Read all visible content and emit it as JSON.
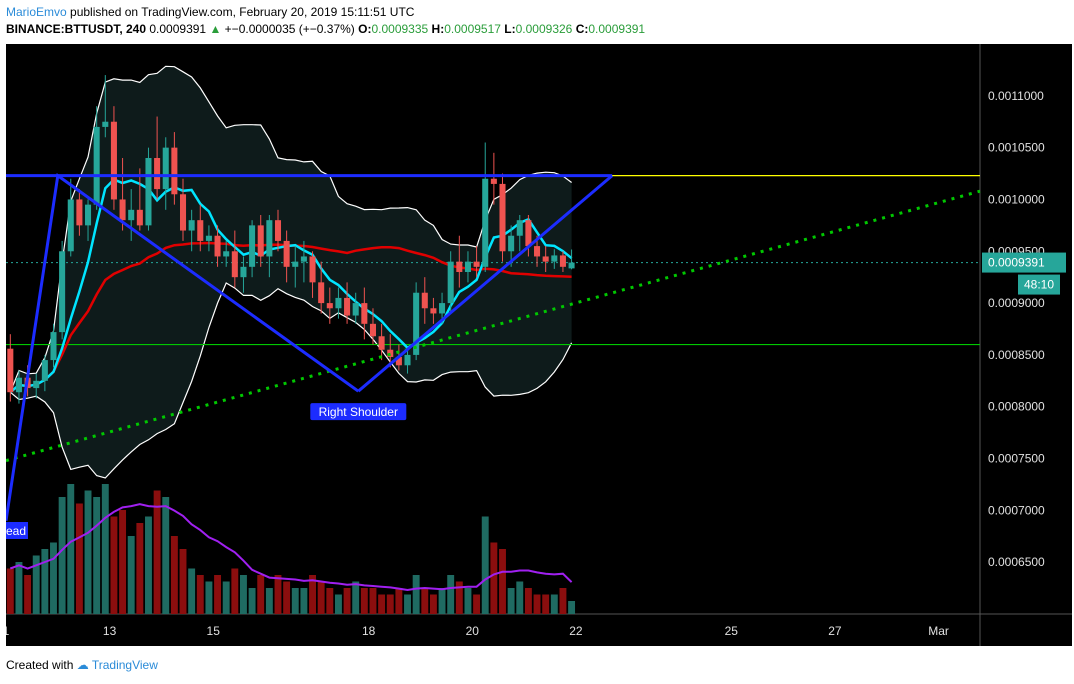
{
  "header": {
    "author": "MarioEmvo",
    "published": "published on TradingView.com, February 20, 2019 15:11:51 UTC"
  },
  "symbol_line": {
    "symbol": "BINANCE:BTTUSDT, 240",
    "last": "0.0009391",
    "change": "+−0.0000035 (+−0.37%)",
    "o_label": "O:",
    "o": "0.0009335",
    "h_label": "H:",
    "h": "0.0009517",
    "l_label": "L:",
    "l": "0.0009326",
    "c_label": "C:",
    "c": "0.0009391"
  },
  "footer": {
    "created_with": "Created with",
    "brand": "TradingView"
  },
  "colors": {
    "background": "#000000",
    "bull": "#26a69a",
    "bear": "#ef5350",
    "bull_vol": "#1f6b62",
    "bear_vol": "#8b0e0e",
    "ma_fast": "#00e5ff",
    "ma_slow": "#e00000",
    "bands": "#ffffff",
    "pattern": "#1c2cff",
    "neckline": "#ffff00",
    "support": "#00c800",
    "trend": "#00c800",
    "volume_ma": "#a020f0",
    "price_tag": "#26a69a"
  },
  "chart_data": {
    "type": "candlestick",
    "ylim": [
      0.0006,
      0.00115
    ],
    "y_ticks": [
      "0.0011000",
      "0.0010500",
      "0.0010000",
      "0.0009500",
      "0.0009000",
      "0.0008500",
      "0.0008000",
      "0.0007500",
      "0.0007000",
      "0.0006500"
    ],
    "y_tick_values": [
      0.0011,
      0.00105,
      0.001,
      0.00095,
      0.0009,
      0.00085,
      0.0008,
      0.00075,
      0.0007,
      0.00065
    ],
    "x_ticks": [
      "1",
      "13",
      "15",
      "18",
      "20",
      "22",
      "25",
      "27",
      "Mar"
    ],
    "x_tick_days": [
      11,
      13,
      15,
      18,
      20,
      22,
      25,
      27,
      29
    ],
    "x_range_days": [
      11,
      29.8
    ],
    "current_price": "0.0009391",
    "countdown": "48:10",
    "candles": [
      {
        "o": 0.000856,
        "h": 0.00087,
        "l": 0.000805,
        "c": 0.000814
      },
      {
        "o": 0.000814,
        "h": 0.000835,
        "l": 0.000803,
        "c": 0.000828
      },
      {
        "o": 0.000828,
        "h": 0.00084,
        "l": 0.00081,
        "c": 0.000818
      },
      {
        "o": 0.000818,
        "h": 0.000832,
        "l": 0.000808,
        "c": 0.000825
      },
      {
        "o": 0.000825,
        "h": 0.00085,
        "l": 0.000815,
        "c": 0.000845
      },
      {
        "o": 0.000845,
        "h": 0.00088,
        "l": 0.000838,
        "c": 0.000872
      },
      {
        "o": 0.000872,
        "h": 0.00096,
        "l": 0.000865,
        "c": 0.00095
      },
      {
        "o": 0.00095,
        "h": 0.00102,
        "l": 0.000945,
        "c": 0.001
      },
      {
        "o": 0.001,
        "h": 0.00101,
        "l": 0.000965,
        "c": 0.000975
      },
      {
        "o": 0.000975,
        "h": 0.001,
        "l": 0.00096,
        "c": 0.000995
      },
      {
        "o": 0.000995,
        "h": 0.00109,
        "l": 0.00099,
        "c": 0.00107
      },
      {
        "o": 0.00107,
        "h": 0.00112,
        "l": 0.00106,
        "c": 0.001075
      },
      {
        "o": 0.001075,
        "h": 0.00109,
        "l": 0.00099,
        "c": 0.001
      },
      {
        "o": 0.001,
        "h": 0.00104,
        "l": 0.00097,
        "c": 0.00098
      },
      {
        "o": 0.00098,
        "h": 0.00101,
        "l": 0.00096,
        "c": 0.00099
      },
      {
        "o": 0.00099,
        "h": 0.00103,
        "l": 0.00097,
        "c": 0.000975
      },
      {
        "o": 0.000975,
        "h": 0.00105,
        "l": 0.00097,
        "c": 0.00104
      },
      {
        "o": 0.00104,
        "h": 0.00108,
        "l": 0.001,
        "c": 0.00101
      },
      {
        "o": 0.00101,
        "h": 0.00106,
        "l": 0.00099,
        "c": 0.00105
      },
      {
        "o": 0.00105,
        "h": 0.001065,
        "l": 0.000995,
        "c": 0.001005
      },
      {
        "o": 0.001005,
        "h": 0.00102,
        "l": 0.00096,
        "c": 0.00097
      },
      {
        "o": 0.00097,
        "h": 0.00099,
        "l": 0.00095,
        "c": 0.00098
      },
      {
        "o": 0.00098,
        "h": 0.000995,
        "l": 0.00095,
        "c": 0.00096
      },
      {
        "o": 0.00096,
        "h": 0.000975,
        "l": 0.00095,
        "c": 0.000965
      },
      {
        "o": 0.000965,
        "h": 0.000975,
        "l": 0.000935,
        "c": 0.000945
      },
      {
        "o": 0.000945,
        "h": 0.00096,
        "l": 0.000935,
        "c": 0.00095
      },
      {
        "o": 0.00095,
        "h": 0.00097,
        "l": 0.000915,
        "c": 0.000925
      },
      {
        "o": 0.000925,
        "h": 0.000945,
        "l": 0.00091,
        "c": 0.000935
      },
      {
        "o": 0.000935,
        "h": 0.00098,
        "l": 0.000925,
        "c": 0.000975
      },
      {
        "o": 0.000975,
        "h": 0.000985,
        "l": 0.000935,
        "c": 0.000945
      },
      {
        "o": 0.000945,
        "h": 0.000985,
        "l": 0.000925,
        "c": 0.00098
      },
      {
        "o": 0.00098,
        "h": 0.00099,
        "l": 0.00095,
        "c": 0.00096
      },
      {
        "o": 0.00096,
        "h": 0.00097,
        "l": 0.00092,
        "c": 0.000935
      },
      {
        "o": 0.000935,
        "h": 0.000955,
        "l": 0.000915,
        "c": 0.00094
      },
      {
        "o": 0.00094,
        "h": 0.00096,
        "l": 0.00092,
        "c": 0.000945
      },
      {
        "o": 0.000945,
        "h": 0.00095,
        "l": 0.000905,
        "c": 0.00092
      },
      {
        "o": 0.00092,
        "h": 0.00094,
        "l": 0.00089,
        "c": 0.0009
      },
      {
        "o": 0.0009,
        "h": 0.000915,
        "l": 0.00088,
        "c": 0.000895
      },
      {
        "o": 0.000895,
        "h": 0.000915,
        "l": 0.000885,
        "c": 0.000905
      },
      {
        "o": 0.000905,
        "h": 0.00092,
        "l": 0.00088,
        "c": 0.000888
      },
      {
        "o": 0.000888,
        "h": 0.00091,
        "l": 0.00088,
        "c": 0.0009
      },
      {
        "o": 0.0009,
        "h": 0.000915,
        "l": 0.000865,
        "c": 0.00088
      },
      {
        "o": 0.00088,
        "h": 0.000895,
        "l": 0.00086,
        "c": 0.000868
      },
      {
        "o": 0.000868,
        "h": 0.00088,
        "l": 0.000845,
        "c": 0.000855
      },
      {
        "o": 0.000855,
        "h": 0.00087,
        "l": 0.000838,
        "c": 0.000848
      },
      {
        "o": 0.000848,
        "h": 0.00086,
        "l": 0.000835,
        "c": 0.00084
      },
      {
        "o": 0.00084,
        "h": 0.000855,
        "l": 0.000832,
        "c": 0.00085
      },
      {
        "o": 0.00085,
        "h": 0.00092,
        "l": 0.000845,
        "c": 0.00091
      },
      {
        "o": 0.00091,
        "h": 0.000925,
        "l": 0.00088,
        "c": 0.000895
      },
      {
        "o": 0.000895,
        "h": 0.000905,
        "l": 0.00088,
        "c": 0.00089
      },
      {
        "o": 0.00089,
        "h": 0.00091,
        "l": 0.00088,
        "c": 0.0009
      },
      {
        "o": 0.0009,
        "h": 0.00095,
        "l": 0.00089,
        "c": 0.00094
      },
      {
        "o": 0.00094,
        "h": 0.000965,
        "l": 0.000915,
        "c": 0.00093
      },
      {
        "o": 0.00093,
        "h": 0.00095,
        "l": 0.00092,
        "c": 0.00094
      },
      {
        "o": 0.00094,
        "h": 0.000955,
        "l": 0.000925,
        "c": 0.000935
      },
      {
        "o": 0.000935,
        "h": 0.001055,
        "l": 0.00093,
        "c": 0.00102
      },
      {
        "o": 0.00102,
        "h": 0.001045,
        "l": 0.000995,
        "c": 0.001015
      },
      {
        "o": 0.001015,
        "h": 0.001025,
        "l": 0.00094,
        "c": 0.00095
      },
      {
        "o": 0.00095,
        "h": 0.000975,
        "l": 0.000935,
        "c": 0.000965
      },
      {
        "o": 0.000965,
        "h": 0.000985,
        "l": 0.00095,
        "c": 0.00098
      },
      {
        "o": 0.00098,
        "h": 0.000985,
        "l": 0.000945,
        "c": 0.000955
      },
      {
        "o": 0.000955,
        "h": 0.000965,
        "l": 0.000935,
        "c": 0.000945
      },
      {
        "o": 0.000945,
        "h": 0.000955,
        "l": 0.00093,
        "c": 0.00094
      },
      {
        "o": 0.00094,
        "h": 0.000952,
        "l": 0.000933,
        "c": 0.000946
      },
      {
        "o": 0.000946,
        "h": 0.00095,
        "l": 0.00093,
        "c": 0.000935
      },
      {
        "o": 0.0009335,
        "h": 0.0009517,
        "l": 0.0009326,
        "c": 0.0009391
      }
    ],
    "volume_relative": [
      0.35,
      0.4,
      0.3,
      0.45,
      0.5,
      0.55,
      0.9,
      1.0,
      0.85,
      0.95,
      0.9,
      1.0,
      0.75,
      0.8,
      0.6,
      0.7,
      0.75,
      0.95,
      0.9,
      0.6,
      0.5,
      0.35,
      0.3,
      0.25,
      0.3,
      0.25,
      0.35,
      0.3,
      0.2,
      0.3,
      0.2,
      0.3,
      0.25,
      0.2,
      0.2,
      0.3,
      0.25,
      0.2,
      0.15,
      0.2,
      0.25,
      0.2,
      0.2,
      0.15,
      0.15,
      0.2,
      0.15,
      0.3,
      0.2,
      0.15,
      0.2,
      0.3,
      0.25,
      0.2,
      0.15,
      0.75,
      0.55,
      0.5,
      0.2,
      0.25,
      0.2,
      0.15,
      0.15,
      0.15,
      0.2,
      0.1
    ],
    "overlays": {
      "neckline_price": 0.001023,
      "support_price": 0.00086,
      "pattern_label": "Right Shoulder",
      "left_label": "ead"
    }
  }
}
